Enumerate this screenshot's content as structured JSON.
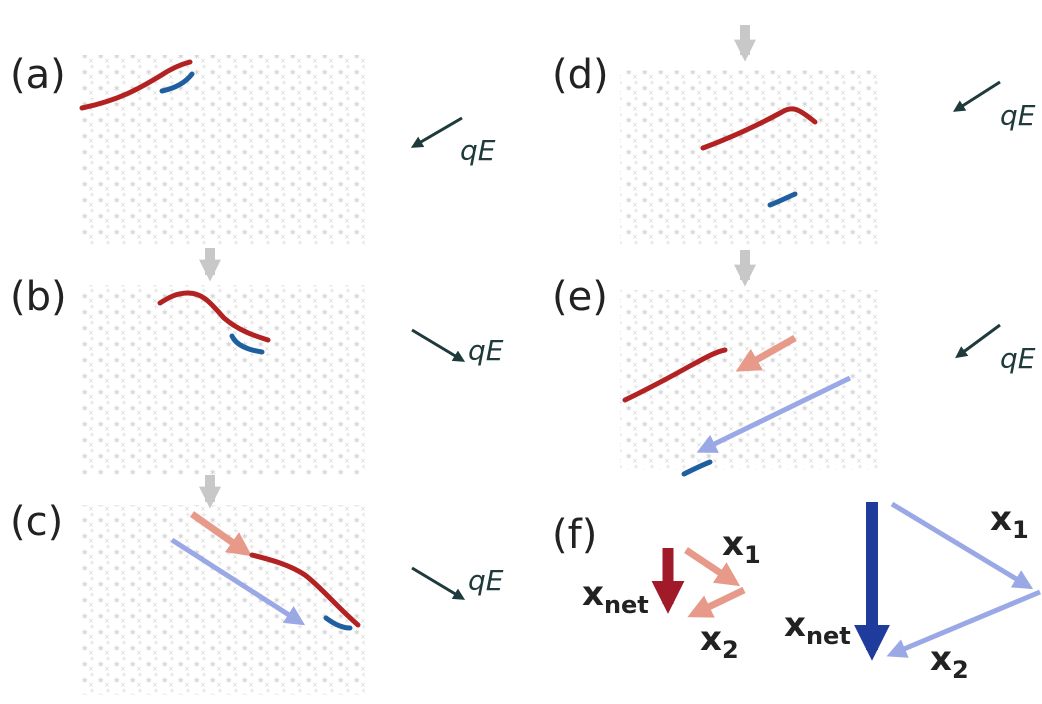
{
  "panels": {
    "a": {
      "label": "(a)",
      "field": "qE"
    },
    "b": {
      "label": "(b)",
      "field": "qE"
    },
    "c": {
      "label": "(c)",
      "field": "qE"
    },
    "d": {
      "label": "(d)",
      "field": "qE"
    },
    "e": {
      "label": "(e)",
      "field": "qE"
    },
    "f": {
      "label": "(f)"
    }
  },
  "vectors": {
    "x_base": "x",
    "sub_1": "1",
    "sub_2": "2",
    "sub_net": "net"
  },
  "colors": {
    "polymer": "#b22222",
    "fragment": "#1f5fa0",
    "field_arrow": "#1e3a3a",
    "step_arrow": "#c8c8c8",
    "salmon_arrow": "#e7998a",
    "light_blue_arrow": "#9aa8e6",
    "dark_red_arrow": "#a01a2a",
    "dark_blue_arrow": "#1f3c9c",
    "obstacles": "#cfcfcf"
  }
}
